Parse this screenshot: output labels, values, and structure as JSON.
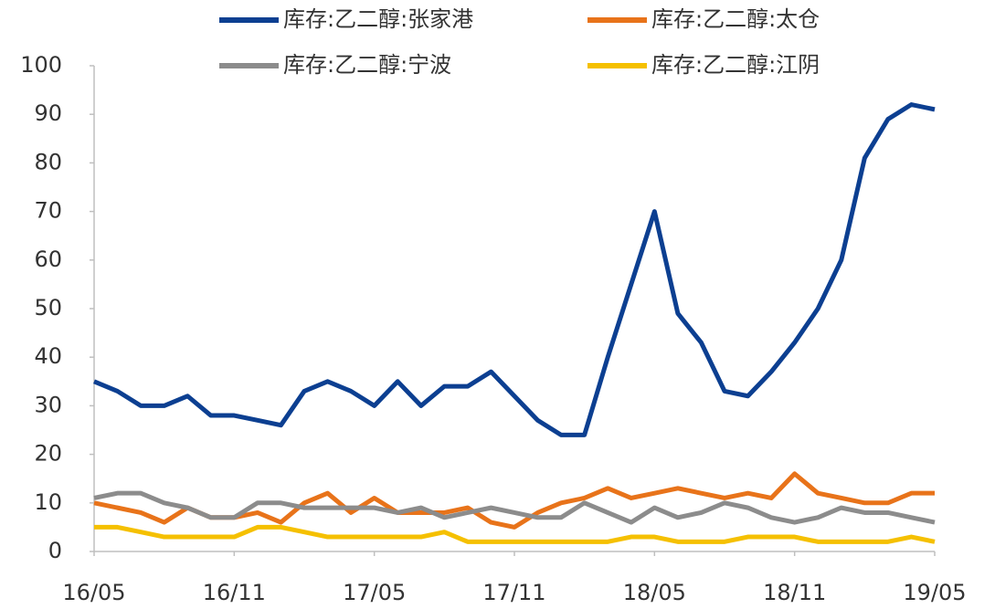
{
  "chart_data": {
    "type": "line",
    "x": [
      0,
      1,
      2,
      3,
      4,
      5,
      6,
      7,
      8,
      9,
      10,
      11,
      12,
      13,
      14,
      15,
      16,
      17,
      18,
      19,
      20,
      21,
      22,
      23,
      24,
      25,
      26,
      27,
      28,
      29,
      30,
      31,
      32,
      33,
      34,
      35,
      36
    ],
    "xlim": [
      0,
      36
    ],
    "xticks": [
      {
        "value": 0,
        "label": "16/05"
      },
      {
        "value": 6,
        "label": "16/11"
      },
      {
        "value": 12,
        "label": "17/05"
      },
      {
        "value": 18,
        "label": "17/11"
      },
      {
        "value": 24,
        "label": "18/05"
      },
      {
        "value": 30,
        "label": "18/11"
      },
      {
        "value": 36,
        "label": "19/05"
      }
    ],
    "ylim": [
      0,
      100
    ],
    "yticks": [
      0,
      10,
      20,
      30,
      40,
      50,
      60,
      70,
      80,
      90,
      100
    ],
    "grid": false,
    "legend": "top",
    "series": [
      {
        "name": "库存:乙二醇:张家港",
        "color": "#0c3f91",
        "values": [
          35,
          33,
          30,
          30,
          32,
          28,
          28,
          27,
          26,
          33,
          35,
          33,
          30,
          35,
          30,
          34,
          34,
          37,
          32,
          27,
          24,
          24,
          40,
          55,
          70,
          49,
          43,
          33,
          32,
          37,
          43,
          50,
          60,
          81,
          89,
          92,
          91
        ]
      },
      {
        "name": "库存:乙二醇:太仓",
        "color": "#e8731a",
        "values": [
          10,
          9,
          8,
          6,
          9,
          7,
          7,
          8,
          6,
          10,
          12,
          8,
          11,
          8,
          8,
          8,
          9,
          6,
          5,
          8,
          10,
          11,
          13,
          11,
          12,
          13,
          12,
          11,
          12,
          11,
          16,
          12,
          11,
          10,
          10,
          12,
          12
        ]
      },
      {
        "name": "库存:乙二醇:宁波",
        "color": "#8c8c8c",
        "values": [
          11,
          12,
          12,
          10,
          9,
          7,
          7,
          10,
          10,
          9,
          9,
          9,
          9,
          8,
          9,
          7,
          8,
          9,
          8,
          7,
          7,
          10,
          8,
          6,
          9,
          7,
          8,
          10,
          9,
          7,
          6,
          7,
          9,
          8,
          8,
          7,
          6
        ]
      },
      {
        "name": "库存:乙二醇:江阴",
        "color": "#f5c000",
        "values": [
          5,
          5,
          4,
          3,
          3,
          3,
          3,
          5,
          5,
          4,
          3,
          3,
          3,
          3,
          3,
          4,
          2,
          2,
          2,
          2,
          2,
          2,
          2,
          3,
          3,
          2,
          2,
          2,
          3,
          3,
          3,
          2,
          2,
          2,
          2,
          3,
          2
        ]
      }
    ]
  }
}
